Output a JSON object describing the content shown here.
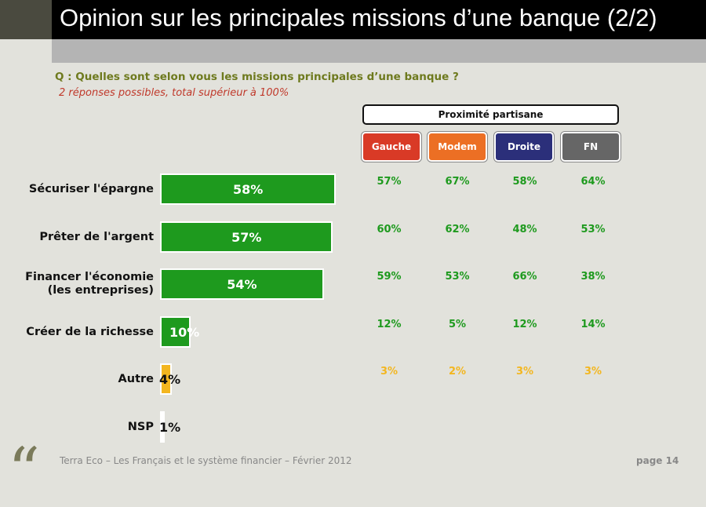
{
  "header": {
    "title": "Opinion sur les principales missions d’une banque (2/2)"
  },
  "question": "Q : Quelles sont selon vous les missions principales d’une banque ?",
  "subtitle": "2 réponses possibles, total supérieur à 100%",
  "proximity_label": "Proximité partisane",
  "chart_data": {
    "type": "bar",
    "categories": [
      "Sécuriser l'épargne",
      "Prêter de l'argent",
      "Financer l'économie (les entreprises)",
      "Créer de la richesse",
      "Autre",
      "NSP"
    ],
    "value_labels": [
      "58%",
      "57%",
      "54%",
      "10%",
      "4%",
      "1%"
    ],
    "values": [
      58,
      57,
      54,
      10,
      4,
      1
    ],
    "xlim": [
      0,
      58
    ],
    "colors": {
      "main": "#1e9a1e",
      "other": "#f3b61f",
      "nsp": "#ffffff"
    },
    "parties": [
      {
        "name": "Gauche",
        "color": "#d93a26",
        "values": [
          "57%",
          "60%",
          "59%",
          "12%",
          "3%"
        ]
      },
      {
        "name": "Modem",
        "color": "#ec6f24",
        "values": [
          "67%",
          "62%",
          "53%",
          "5%",
          "2%"
        ]
      },
      {
        "name": "Droite",
        "color": "#2b2f7a",
        "values": [
          "58%",
          "48%",
          "66%",
          "12%",
          "3%"
        ]
      },
      {
        "name": "FN",
        "color": "#666666",
        "values": [
          "64%",
          "53%",
          "38%",
          "14%",
          "3%"
        ]
      }
    ]
  },
  "footer": {
    "source": "Terra Eco – Les Français et le système financier – Février 2012",
    "page": "page 14",
    "icon": "quote-icon"
  }
}
